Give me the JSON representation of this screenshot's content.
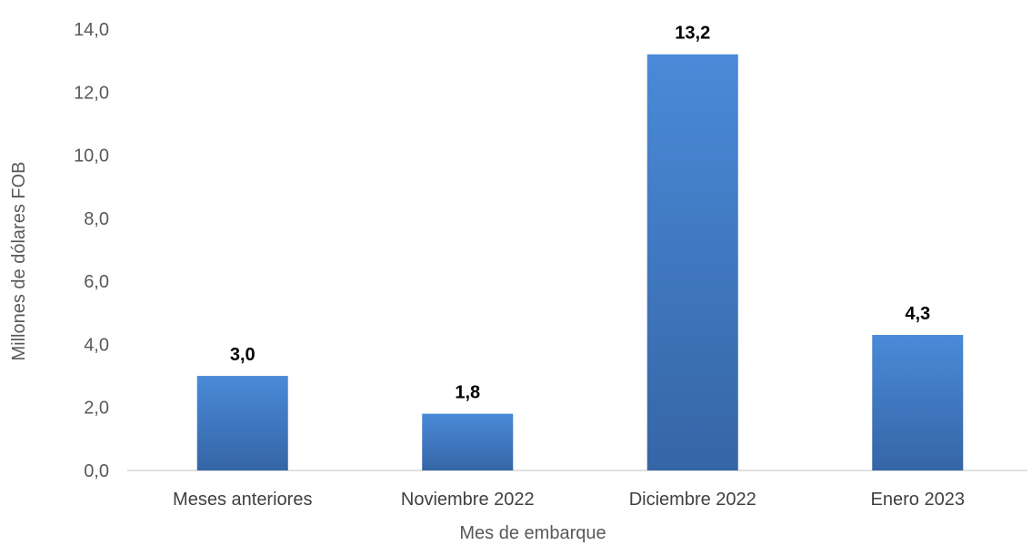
{
  "chart_data": {
    "type": "bar",
    "title": "",
    "xlabel": "Mes de embarque",
    "ylabel": "Millones de dólares FOB",
    "categories": [
      "Meses anteriores",
      "Noviembre 2022",
      "Diciembre 2022",
      "Enero 2023"
    ],
    "values": [
      3.0,
      1.8,
      13.2,
      4.3
    ],
    "data_labels": [
      "3,0",
      "1,8",
      "13,2",
      "4,3"
    ],
    "yticks": [
      "0,0",
      "2,0",
      "4,0",
      "6,0",
      "8,0",
      "10,0",
      "12,0",
      "14,0"
    ],
    "ylim": [
      0,
      14
    ],
    "grid": false,
    "legend": "none",
    "colors": {
      "bar_top": "#4a8ad8",
      "bar_bottom": "#3565a6",
      "axis": "#d9d9d9"
    }
  }
}
